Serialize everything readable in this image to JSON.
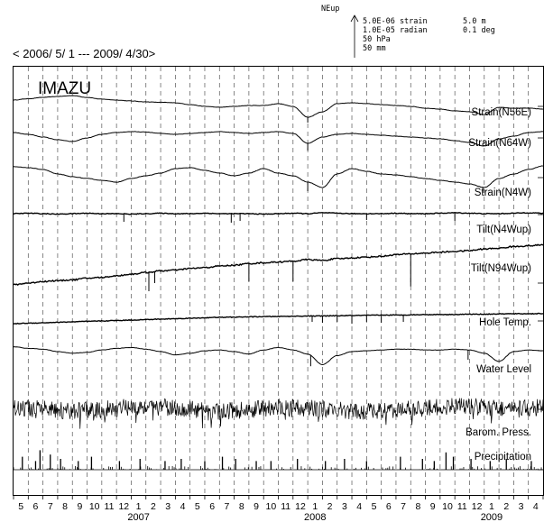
{
  "header": {
    "period": "< 2006/ 5/ 1 --- 2009/ 4/30>",
    "station": "IMAZU",
    "scale_title": "NEup",
    "scale_rows": [
      {
        "label": "5.0E-06 strain",
        "right": "5.0 m"
      },
      {
        "label": "1.0E-05 radian",
        "right": "0.1 deg"
      },
      {
        "label": "50 hPa",
        "right": ""
      },
      {
        "label": "50 mm",
        "right": ""
      }
    ]
  },
  "chart_data": {
    "type": "line",
    "station": "IMAZU",
    "period": "< 2006/ 5/ 1 --- 2009/ 4/30>",
    "x_months": [
      "5",
      "6",
      "7",
      "8",
      "9",
      "10",
      "11",
      "12",
      "1",
      "2",
      "3",
      "4",
      "5",
      "6",
      "7",
      "8",
      "9",
      "10",
      "11",
      "12",
      "1",
      "2",
      "3",
      "4",
      "5",
      "6",
      "7",
      "8",
      "9",
      "10",
      "11",
      "12",
      "1",
      "2",
      "3",
      "4"
    ],
    "x_years": [
      {
        "label": "2007",
        "month_index": 8
      },
      {
        "label": "2008",
        "month_index": 20
      },
      {
        "label": "2009",
        "month_index": 32
      }
    ],
    "grid": "vertical dashed at month boundaries",
    "series": [
      {
        "name": "Strain(N56E)",
        "kind": "smooth",
        "knots": [
          0.3,
          0.45,
          0.6,
          0.7,
          0.8,
          0.6,
          0.4,
          0.3,
          0.2,
          0.1,
          0.05,
          0.0,
          -0.2,
          -0.4,
          -0.5,
          -0.4,
          -0.3,
          -0.3,
          -0.1,
          -0.4,
          -1.6,
          -1.0,
          -0.1,
          0.0,
          -0.1,
          -0.2,
          -0.3,
          -0.4,
          -0.6,
          -0.7,
          -0.9,
          -1.0,
          -1.3,
          -0.5,
          -0.6,
          -0.6,
          -0.7
        ],
        "spikes": [
          {
            "m": 20.0,
            "v": -2.2
          }
        ]
      },
      {
        "name": "Strain(N64W)",
        "kind": "smooth",
        "knots": [
          0.2,
          0.0,
          -0.3,
          -0.6,
          -0.8,
          -0.4,
          0.0,
          0.2,
          0.3,
          0.25,
          0.1,
          0.0,
          0.1,
          0.2,
          0.3,
          0.2,
          0.1,
          0.2,
          0.3,
          0.1,
          -1.0,
          -0.3,
          0.0,
          0.1,
          0.0,
          -0.1,
          -0.2,
          -0.3,
          -0.4,
          -0.5,
          -0.7,
          -0.9,
          -1.3,
          -0.5,
          -0.2,
          0.2,
          0.3
        ],
        "spikes": [
          {
            "m": 20.0,
            "v": -1.8
          }
        ]
      },
      {
        "name": "Strain(N4W)",
        "kind": "smooth",
        "knots": [
          0.5,
          0.4,
          0.2,
          -0.3,
          -0.6,
          -0.8,
          -1.0,
          -1.2,
          -0.8,
          -0.5,
          -0.2,
          0.3,
          0.4,
          0.1,
          -0.2,
          -0.5,
          -0.2,
          0.3,
          -0.2,
          -0.5,
          -1.2,
          -1.8,
          -0.3,
          0.3,
          0.0,
          -0.3,
          -0.4,
          -0.6,
          -0.8,
          -1.0,
          -1.2,
          -1.4,
          -1.8,
          -0.8,
          -0.3,
          0.2,
          0.6
        ],
        "spikes": [
          {
            "m": 20.0,
            "v": -2.2
          },
          {
            "m": 31.9,
            "v": -2.4
          }
        ]
      },
      {
        "name": "Tilt(N4Wup)",
        "kind": "flat",
        "knots": [
          0.0,
          0.05,
          0.0,
          -0.05,
          0.0,
          0.05,
          0.0,
          0.0,
          -0.05,
          0.0,
          0.05,
          0.0,
          0.0,
          0.05,
          0.0,
          0.0,
          0.0,
          -0.05,
          0.0,
          0.05,
          0.0,
          0.1,
          0.05,
          0.0,
          0.0,
          0.0,
          0.05,
          0.0,
          0.0,
          0.05,
          0.1,
          0.05,
          0.0,
          0.0,
          0.05,
          0.1,
          0.05
        ],
        "spikes": [
          {
            "m": 7.5,
            "v": -0.9
          },
          {
            "m": 14.8,
            "v": -1.0
          },
          {
            "m": 15.4,
            "v": -0.8
          },
          {
            "m": 24.0,
            "v": -0.7
          },
          {
            "m": 30.0,
            "v": -0.8
          }
        ]
      },
      {
        "name": "Tilt(N94Wup)",
        "kind": "trend",
        "knots": [
          -1.1,
          -1.0,
          -0.9,
          -0.85,
          -0.8,
          -0.7,
          -0.65,
          -0.55,
          -0.45,
          -0.35,
          -0.25,
          -0.2,
          -0.1,
          -0.05,
          0.05,
          0.1,
          0.2,
          0.25,
          0.3,
          0.35,
          0.45,
          0.4,
          0.5,
          0.55,
          0.6,
          0.65,
          0.75,
          0.8,
          0.85,
          0.9,
          0.95,
          1.0,
          1.1,
          1.15,
          1.25,
          1.3,
          1.35
        ],
        "spikes": [
          {
            "m": 9.2,
            "v": -1.5
          },
          {
            "m": 9.6,
            "v": -1.0
          },
          {
            "m": 16.0,
            "v": -0.9
          },
          {
            "m": 19.0,
            "v": -0.9
          },
          {
            "m": 27.0,
            "v": -1.2
          }
        ]
      },
      {
        "name": "Hole Temp.",
        "kind": "trend",
        "knots": [
          -0.6,
          -0.55,
          -0.5,
          -0.45,
          -0.4,
          -0.35,
          -0.3,
          -0.25,
          -0.2,
          -0.15,
          -0.1,
          -0.05,
          0.0,
          0.05,
          0.1,
          0.12,
          0.15,
          0.18,
          0.2,
          0.22,
          0.25,
          0.25,
          0.28,
          0.3,
          0.32,
          0.35,
          0.35,
          0.38,
          0.4,
          0.42,
          0.42,
          0.45,
          0.45,
          0.48,
          0.5,
          0.5,
          0.52
        ],
        "spikes": [
          {
            "m": 20.3,
            "v": -0.4
          },
          {
            "m": 21.0,
            "v": -0.5
          },
          {
            "m": 22.0,
            "v": -0.4
          },
          {
            "m": 23.0,
            "v": -0.6
          },
          {
            "m": 24.0,
            "v": -0.4
          },
          {
            "m": 25.0,
            "v": -0.5
          },
          {
            "m": 26.5,
            "v": -0.4
          }
        ]
      },
      {
        "name": "Water Level",
        "kind": "smooth",
        "knots": [
          0.6,
          0.4,
          0.3,
          0.0,
          -0.2,
          -0.1,
          0.2,
          0.4,
          0.5,
          0.3,
          0.0,
          -0.4,
          -0.2,
          0.1,
          0.2,
          0.0,
          -0.3,
          0.2,
          0.5,
          0.2,
          -0.3,
          -1.6,
          -0.5,
          0.0,
          0.1,
          0.2,
          0.3,
          0.3,
          0.2,
          0.2,
          0.3,
          0.2,
          -0.2,
          -1.2,
          0.0,
          0.2,
          0.1
        ],
        "spikes": [
          {
            "m": 20.2,
            "v": -1.8
          },
          {
            "m": 30.9,
            "v": -1.0
          }
        ]
      },
      {
        "name": "Barom. Press.",
        "kind": "noise",
        "knots": [
          0.2,
          0.1,
          0.0,
          -0.1,
          -0.2,
          -0.1,
          0.0,
          0.1,
          0.2,
          0.3,
          0.2,
          0.1,
          0.0,
          -0.1,
          -0.2,
          -0.1,
          0.0,
          0.1,
          0.2,
          0.2,
          0.1,
          0.0,
          -0.1,
          -0.2,
          -0.2,
          -0.1,
          0.0,
          0.0,
          0.1,
          0.2,
          0.3,
          0.3,
          0.2,
          0.1,
          0.0,
          0.1,
          0.2
        ],
        "spikes": []
      },
      {
        "name": "Precipitation",
        "kind": "bars",
        "knots": [
          0,
          0,
          0,
          0,
          0,
          0,
          0,
          0,
          0,
          0,
          0,
          0,
          0,
          0,
          0,
          0,
          0,
          0,
          0,
          0,
          0,
          0,
          0,
          0,
          0,
          0,
          0,
          0,
          0,
          0,
          0,
          0,
          0,
          0,
          0,
          0,
          0
        ],
        "spikes": [
          {
            "m": 0.6,
            "v": 0.6
          },
          {
            "m": 1.5,
            "v": 0.4
          },
          {
            "m": 1.8,
            "v": 0.9
          },
          {
            "m": 2.5,
            "v": 0.7
          },
          {
            "m": 3.2,
            "v": 0.5
          },
          {
            "m": 4.4,
            "v": 0.4
          },
          {
            "m": 5.3,
            "v": 0.6
          },
          {
            "m": 7.2,
            "v": 0.4
          },
          {
            "m": 8.6,
            "v": 0.5
          },
          {
            "m": 10.3,
            "v": 0.4
          },
          {
            "m": 11.4,
            "v": 0.5
          },
          {
            "m": 13.0,
            "v": 0.4
          },
          {
            "m": 14.2,
            "v": 0.6
          },
          {
            "m": 15.1,
            "v": 0.5
          },
          {
            "m": 16.5,
            "v": 0.4
          },
          {
            "m": 17.5,
            "v": 0.4
          },
          {
            "m": 19.3,
            "v": 0.5
          },
          {
            "m": 21.2,
            "v": 0.4
          },
          {
            "m": 22.5,
            "v": 0.5
          },
          {
            "m": 24.0,
            "v": 0.4
          },
          {
            "m": 26.3,
            "v": 0.6
          },
          {
            "m": 27.8,
            "v": 0.5
          },
          {
            "m": 28.6,
            "v": 0.4
          },
          {
            "m": 29.4,
            "v": 0.8
          },
          {
            "m": 29.9,
            "v": 0.6
          },
          {
            "m": 31.1,
            "v": 0.5
          },
          {
            "m": 32.4,
            "v": 0.4
          },
          {
            "m": 33.5,
            "v": 0.5
          },
          {
            "m": 35.2,
            "v": 0.4
          }
        ]
      }
    ]
  }
}
